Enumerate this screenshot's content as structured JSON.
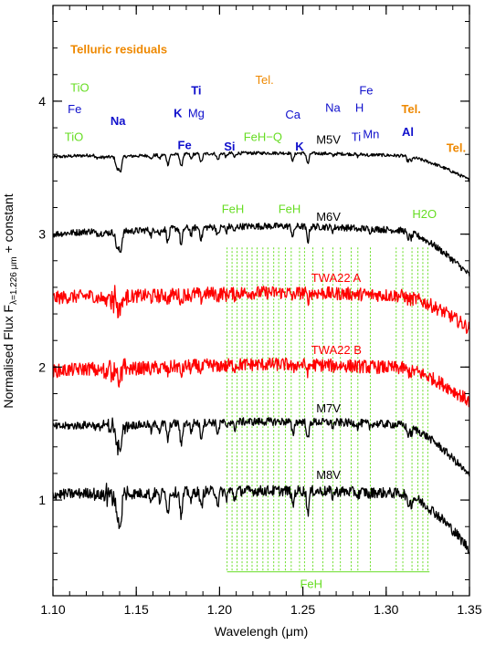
{
  "chart_data": {
    "type": "line",
    "xlabel": "Wavelengh (μm)",
    "ylabel": "Normalised Flux F",
    "ylabel_subscript": "λ=1.226 μm",
    "ylabel_suffix": " + constant",
    "xlim": [
      1.1,
      1.35
    ],
    "ylim": [
      0.28,
      4.72
    ],
    "x_ticks": [
      "1.10",
      "1.15",
      "1.20",
      "1.25",
      "1.30",
      "1.35"
    ],
    "x_tick_values": [
      1.1,
      1.15,
      1.2,
      1.25,
      1.3,
      1.35
    ],
    "y_ticks": [
      "1",
      "2",
      "3",
      "4"
    ],
    "y_tick_values": [
      1,
      2,
      3,
      4
    ],
    "colors": {
      "black": "#000000",
      "red": "#ff0000",
      "green": "#66dd22",
      "blue": "#1010cc",
      "orange": "#ee8800"
    },
    "series": [
      {
        "name": "M5V",
        "color": "#000000",
        "baseline": 3.56,
        "noise": 0.012,
        "dropoff": 0.16,
        "bump": 0.05,
        "lines": 0.16
      },
      {
        "name": "M6V",
        "color": "#000000",
        "baseline": 2.98,
        "noise": 0.025,
        "dropoff": 0.3,
        "bump": 0.08,
        "lines": 0.22
      },
      {
        "name": "TWA22  A",
        "color": "#ff0000",
        "baseline": 2.5,
        "noise": 0.05,
        "dropoff": 0.22,
        "bump": 0.06,
        "lines": 0.1
      },
      {
        "name": "TWA22  B",
        "color": "#ff0000",
        "baseline": 1.95,
        "noise": 0.05,
        "dropoff": 0.22,
        "bump": 0.07,
        "lines": 0.1
      },
      {
        "name": "M7V",
        "color": "#000000",
        "baseline": 1.53,
        "noise": 0.03,
        "dropoff": 0.36,
        "bump": 0.06,
        "lines": 0.28
      },
      {
        "name": "M8V",
        "color": "#000000",
        "baseline": 1.02,
        "noise": 0.04,
        "dropoff": 0.4,
        "bump": 0.05,
        "lines": 0.32
      }
    ],
    "absorption_lines": [
      {
        "x": 1.1385,
        "depth": 0.55,
        "w": 0.0012
      },
      {
        "x": 1.1405,
        "depth": 0.65,
        "w": 0.0012
      },
      {
        "x": 1.159,
        "depth": 0.2,
        "w": 0.0008
      },
      {
        "x": 1.164,
        "depth": 0.18,
        "w": 0.0008
      },
      {
        "x": 1.169,
        "depth": 0.45,
        "w": 0.001
      },
      {
        "x": 1.177,
        "depth": 0.6,
        "w": 0.001
      },
      {
        "x": 1.183,
        "depth": 0.25,
        "w": 0.0008
      },
      {
        "x": 1.189,
        "depth": 0.4,
        "w": 0.001
      },
      {
        "x": 1.199,
        "depth": 0.3,
        "w": 0.001
      },
      {
        "x": 1.204,
        "depth": 0.18,
        "w": 0.0008
      },
      {
        "x": 1.209,
        "depth": 0.2,
        "w": 0.0008
      },
      {
        "x": 1.244,
        "depth": 0.35,
        "w": 0.001
      },
      {
        "x": 1.253,
        "depth": 0.5,
        "w": 0.001
      },
      {
        "x": 1.268,
        "depth": 0.12,
        "w": 0.0008
      },
      {
        "x": 1.283,
        "depth": 0.1,
        "w": 0.0008
      },
      {
        "x": 1.29,
        "depth": 0.1,
        "w": 0.0008
      },
      {
        "x": 1.313,
        "depth": 0.22,
        "w": 0.001
      },
      {
        "x": 1.315,
        "depth": 0.18,
        "w": 0.001
      }
    ],
    "feh_lines": [
      1.2045,
      1.2075,
      1.2105,
      1.2135,
      1.2165,
      1.2195,
      1.2225,
      1.226,
      1.229,
      1.2325,
      1.2355,
      1.2395,
      1.243,
      1.248,
      1.251,
      1.256,
      1.262,
      1.268,
      1.2725,
      1.279,
      1.283,
      1.2905,
      1.306,
      1.31,
      1.3155,
      1.319,
      1.322,
      1.325
    ],
    "annotations": [
      {
        "text": "Telluric residuals",
        "x": 1.1105,
        "y": 4.36,
        "color": "#ee8800",
        "weight": "bold",
        "anchor": "start"
      },
      {
        "text": "Tel.",
        "x": 1.227,
        "y": 4.13,
        "color": "#ee8800",
        "weight": "normal",
        "anchor": "middle"
      },
      {
        "text": "Tel.",
        "x": 1.315,
        "y": 3.91,
        "color": "#ee8800",
        "weight": "bold",
        "anchor": "middle"
      },
      {
        "text": "Tel.",
        "x": 1.342,
        "y": 3.62,
        "color": "#ee8800",
        "weight": "bold",
        "anchor": "middle"
      },
      {
        "text": "TiO",
        "x": 1.1105,
        "y": 4.07,
        "color": "#66dd22",
        "weight": "normal",
        "anchor": "start"
      },
      {
        "text": "TiO",
        "x": 1.107,
        "y": 3.7,
        "color": "#66dd22",
        "weight": "normal",
        "anchor": "start"
      },
      {
        "text": "FeH−Q",
        "x": 1.226,
        "y": 3.7,
        "color": "#66dd22",
        "weight": "normal",
        "anchor": "middle"
      },
      {
        "text": "FeH",
        "x": 1.208,
        "y": 3.16,
        "color": "#66dd22",
        "weight": "normal",
        "anchor": "middle"
      },
      {
        "text": "FeH",
        "x": 1.242,
        "y": 3.16,
        "color": "#66dd22",
        "weight": "normal",
        "anchor": "middle"
      },
      {
        "text": "H2O",
        "x": 1.323,
        "y": 3.12,
        "color": "#66dd22",
        "weight": "normal",
        "anchor": "middle"
      },
      {
        "text": "FeH",
        "x": 1.255,
        "y": 0.34,
        "color": "#66dd22",
        "weight": "normal",
        "anchor": "middle"
      },
      {
        "text": "Fe",
        "x": 1.113,
        "y": 3.91,
        "color": "#1010cc",
        "weight": "normal",
        "anchor": "middle"
      },
      {
        "text": "Na",
        "x": 1.139,
        "y": 3.82,
        "color": "#1010cc",
        "weight": "bold",
        "anchor": "middle"
      },
      {
        "text": "Ti",
        "x": 1.186,
        "y": 4.05,
        "color": "#1010cc",
        "weight": "bold",
        "anchor": "middle"
      },
      {
        "text": "K",
        "x": 1.175,
        "y": 3.88,
        "color": "#1010cc",
        "weight": "bold",
        "anchor": "middle"
      },
      {
        "text": "Mg",
        "x": 1.186,
        "y": 3.88,
        "color": "#1010cc",
        "weight": "normal",
        "anchor": "middle"
      },
      {
        "text": "Fe",
        "x": 1.179,
        "y": 3.64,
        "color": "#1010cc",
        "weight": "bold",
        "anchor": "middle"
      },
      {
        "text": "Si",
        "x": 1.206,
        "y": 3.63,
        "color": "#1010cc",
        "weight": "bold",
        "anchor": "middle"
      },
      {
        "text": "Ca",
        "x": 1.244,
        "y": 3.87,
        "color": "#1010cc",
        "weight": "normal",
        "anchor": "middle"
      },
      {
        "text": "K",
        "x": 1.248,
        "y": 3.63,
        "color": "#1010cc",
        "weight": "bold",
        "anchor": "middle"
      },
      {
        "text": "Na",
        "x": 1.268,
        "y": 3.92,
        "color": "#1010cc",
        "weight": "normal",
        "anchor": "middle"
      },
      {
        "text": "Fe",
        "x": 1.288,
        "y": 4.05,
        "color": "#1010cc",
        "weight": "normal",
        "anchor": "middle"
      },
      {
        "text": "H",
        "x": 1.284,
        "y": 3.92,
        "color": "#1010cc",
        "weight": "normal",
        "anchor": "middle"
      },
      {
        "text": "Ti",
        "x": 1.282,
        "y": 3.7,
        "color": "#1010cc",
        "weight": "normal",
        "anchor": "middle"
      },
      {
        "text": "Mn",
        "x": 1.291,
        "y": 3.72,
        "color": "#1010cc",
        "weight": "normal",
        "anchor": "middle"
      },
      {
        "text": "Al",
        "x": 1.313,
        "y": 3.74,
        "color": "#1010cc",
        "weight": "bold",
        "anchor": "middle"
      }
    ],
    "label_positions": [
      {
        "x": 1.258,
        "y": 3.68
      },
      {
        "x": 1.258,
        "y": 3.1
      },
      {
        "x": 1.255,
        "y": 2.64
      },
      {
        "x": 1.255,
        "y": 2.1
      },
      {
        "x": 1.258,
        "y": 1.66
      },
      {
        "x": 1.258,
        "y": 1.16
      }
    ]
  }
}
